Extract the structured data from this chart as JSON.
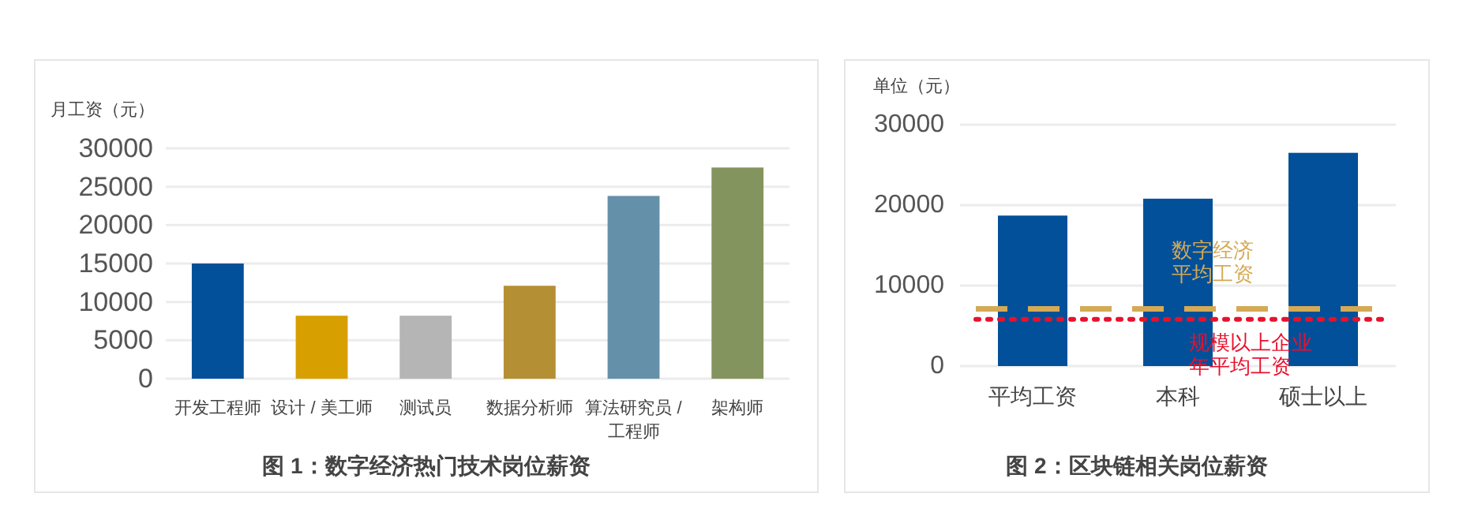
{
  "chart_data": [
    {
      "type": "bar",
      "title": "图 1：数字经济热门技术岗位薪资",
      "ylabel": "月工资（元）",
      "categories": [
        "开发工程师",
        "设计 / 美工师",
        "测试员",
        "数据分析师",
        "算法研究员 / 工程师",
        "架构师"
      ],
      "values": [
        15000,
        8200,
        8200,
        12100,
        23800,
        27500
      ],
      "colors": [
        "#03509a",
        "#d79f00",
        "#b5b5b5",
        "#b58f33",
        "#6490aa",
        "#84945f"
      ],
      "ylim": [
        0,
        30000
      ],
      "yticks": [
        0,
        5000,
        10000,
        15000,
        20000,
        25000,
        30000
      ],
      "grid": "y"
    },
    {
      "type": "bar",
      "title": "图 2：区块链相关岗位薪资",
      "ylabel": "单位（元）",
      "categories": [
        "平均工资",
        "本科",
        "硕士以上"
      ],
      "values": [
        18700,
        20800,
        26500
      ],
      "color": "#03509a",
      "ylim": [
        0,
        30000
      ],
      "yticks": [
        0,
        10000,
        20000,
        30000
      ],
      "grid": "y",
      "ref_lines": [
        {
          "axis": "y",
          "value": 7100,
          "label": "数字经济平均工资",
          "color": "#d4aa55",
          "line_style": "dashed"
        },
        {
          "axis": "y",
          "value": 5800,
          "label": "规模以上企业年平均工资",
          "color": "#e8112d",
          "line_style": "dotted"
        }
      ]
    }
  ]
}
